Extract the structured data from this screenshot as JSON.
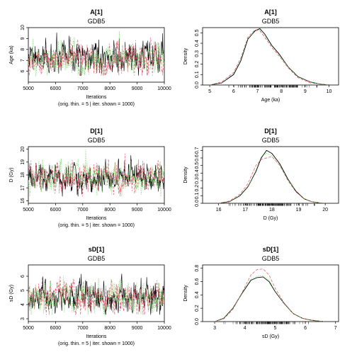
{
  "chart_data": [
    {
      "type": "line",
      "title": "A[1]",
      "subtitle": "GDB5",
      "xlabel": "Iterations",
      "xnote": "(orig. thin. = 5 | iter. shown = 1000)",
      "ylabel": "Age (ka)",
      "xlim": [
        5000,
        10000
      ],
      "ylim": [
        5,
        10
      ],
      "xticks": [
        5000,
        6000,
        7000,
        8000,
        9000,
        10000
      ],
      "yticks": [
        6,
        7,
        8,
        9,
        10
      ],
      "center": 7.1,
      "spread": 0.7,
      "series": [
        {
          "color": "#000000"
        },
        {
          "color": "#DF536B"
        },
        {
          "color": "#61D04F"
        }
      ]
    },
    {
      "type": "line",
      "title": "A[1]",
      "subtitle": "GDB5",
      "xlabel": "Age (ka)",
      "ylabel": "Density",
      "xlim": [
        4.7,
        10.4
      ],
      "ylim": [
        0,
        0.55
      ],
      "xticks": [
        5,
        6,
        7,
        8,
        9,
        10
      ],
      "yticks": [
        0.0,
        0.1,
        0.2,
        0.3,
        0.4,
        0.5
      ],
      "series": [
        {
          "color": "#000000",
          "x": [
            5.0,
            5.5,
            6.0,
            6.3,
            6.6,
            6.9,
            7.1,
            7.3,
            7.6,
            7.9,
            8.3,
            8.7,
            9.2,
            9.6,
            10.0
          ],
          "y": [
            0.0,
            0.02,
            0.1,
            0.23,
            0.44,
            0.52,
            0.54,
            0.49,
            0.38,
            0.3,
            0.17,
            0.08,
            0.03,
            0.01,
            0.0
          ]
        },
        {
          "color": "#DF536B",
          "x": [
            5.0,
            5.5,
            6.0,
            6.3,
            6.6,
            6.9,
            7.1,
            7.3,
            7.6,
            7.9,
            8.3,
            8.7,
            9.2,
            9.6,
            10.0
          ],
          "y": [
            0.0,
            0.03,
            0.12,
            0.26,
            0.46,
            0.53,
            0.52,
            0.46,
            0.36,
            0.28,
            0.16,
            0.07,
            0.02,
            0.01,
            0.0
          ]
        },
        {
          "color": "#61D04F",
          "x": [
            5.0,
            5.5,
            6.0,
            6.3,
            6.6,
            6.9,
            7.1,
            7.3,
            7.6,
            7.9,
            8.3,
            8.7,
            9.2,
            9.6,
            10.0
          ],
          "y": [
            0.0,
            0.02,
            0.11,
            0.25,
            0.45,
            0.51,
            0.53,
            0.47,
            0.37,
            0.29,
            0.17,
            0.08,
            0.03,
            0.01,
            0.0
          ]
        }
      ],
      "rug_range": [
        5.8,
        9.5
      ]
    },
    {
      "type": "line",
      "title": "D[1]",
      "subtitle": "GDB5",
      "xlabel": "Iterations",
      "xnote": "(orig. thin. = 5 | iter. shown = 1000)",
      "ylabel": "D (Gy)",
      "xlim": [
        5000,
        10000
      ],
      "ylim": [
        15.8,
        20.2
      ],
      "xticks": [
        5000,
        6000,
        7000,
        8000,
        9000,
        10000
      ],
      "yticks": [
        16,
        17,
        18,
        19,
        20
      ],
      "center": 17.8,
      "spread": 0.55,
      "series": [
        {
          "color": "#000000"
        },
        {
          "color": "#DF536B"
        },
        {
          "color": "#61D04F"
        }
      ]
    },
    {
      "type": "line",
      "title": "D[1]",
      "subtitle": "GDB5",
      "xlabel": "D (Gy)",
      "ylabel": "Density",
      "xlim": [
        15.4,
        20.5
      ],
      "ylim": [
        0,
        0.75
      ],
      "xticks": [
        16,
        17,
        18,
        19,
        20
      ],
      "yticks": [
        0.0,
        0.1,
        0.2,
        0.3,
        0.4,
        0.5,
        0.6,
        0.7
      ],
      "series": [
        {
          "color": "#000000",
          "x": [
            16.0,
            16.4,
            16.8,
            17.1,
            17.4,
            17.6,
            17.8,
            18.0,
            18.3,
            18.6,
            18.9,
            19.2,
            19.5,
            19.9
          ],
          "y": [
            0.0,
            0.02,
            0.1,
            0.22,
            0.42,
            0.6,
            0.7,
            0.66,
            0.52,
            0.32,
            0.16,
            0.06,
            0.02,
            0.0
          ]
        },
        {
          "color": "#DF536B",
          "x": [
            16.0,
            16.4,
            16.8,
            17.1,
            17.4,
            17.6,
            17.8,
            18.0,
            18.3,
            18.6,
            18.9,
            19.2,
            19.5,
            19.9
          ],
          "y": [
            0.0,
            0.03,
            0.12,
            0.26,
            0.5,
            0.58,
            0.6,
            0.62,
            0.5,
            0.3,
            0.15,
            0.06,
            0.02,
            0.0
          ]
        },
        {
          "color": "#61D04F",
          "x": [
            16.0,
            16.4,
            16.8,
            17.1,
            17.4,
            17.6,
            17.8,
            18.0,
            18.3,
            18.6,
            18.9,
            19.2,
            19.5,
            19.9
          ],
          "y": [
            0.0,
            0.02,
            0.09,
            0.21,
            0.44,
            0.62,
            0.66,
            0.63,
            0.49,
            0.31,
            0.17,
            0.07,
            0.02,
            0.0
          ]
        }
      ],
      "rug_range": [
        16.4,
        19.6
      ]
    },
    {
      "type": "line",
      "title": "sD[1]",
      "subtitle": "GDB5",
      "xlabel": "Iterations",
      "xnote": "(orig. thin. = 5 | iter. shown = 1000)",
      "ylabel": "sD (Gy)",
      "xlim": [
        5000,
        10000
      ],
      "ylim": [
        2.8,
        6.8
      ],
      "xticks": [
        5000,
        6000,
        7000,
        8000,
        9000,
        10000
      ],
      "yticks": [
        3,
        4,
        5,
        6
      ],
      "center": 4.5,
      "spread": 0.55,
      "series": [
        {
          "color": "#000000"
        },
        {
          "color": "#DF536B"
        },
        {
          "color": "#61D04F"
        }
      ]
    },
    {
      "type": "line",
      "title": "sD[1]",
      "subtitle": "GDB5",
      "xlabel": "sD (Gy)",
      "ylabel": "Density",
      "xlim": [
        2.6,
        7.1
      ],
      "ylim": [
        0,
        0.85
      ],
      "xticks": [
        3,
        4,
        5,
        6,
        7
      ],
      "yticks": [
        0.0,
        0.2,
        0.4,
        0.6,
        0.8
      ],
      "series": [
        {
          "color": "#000000",
          "x": [
            3.0,
            3.3,
            3.6,
            3.9,
            4.2,
            4.4,
            4.6,
            4.8,
            5.0,
            5.3,
            5.6,
            5.9,
            6.2,
            6.6
          ],
          "y": [
            0.0,
            0.05,
            0.2,
            0.42,
            0.62,
            0.66,
            0.67,
            0.6,
            0.45,
            0.27,
            0.12,
            0.05,
            0.02,
            0.0
          ]
        },
        {
          "color": "#DF536B",
          "x": [
            3.0,
            3.3,
            3.6,
            3.9,
            4.2,
            4.4,
            4.6,
            4.8,
            5.0,
            5.3,
            5.6,
            5.9,
            6.2,
            6.6
          ],
          "y": [
            0.0,
            0.04,
            0.18,
            0.43,
            0.7,
            0.78,
            0.79,
            0.7,
            0.5,
            0.28,
            0.12,
            0.05,
            0.02,
            0.0
          ]
        },
        {
          "color": "#61D04F",
          "x": [
            3.0,
            3.3,
            3.6,
            3.9,
            4.2,
            4.4,
            4.6,
            4.8,
            5.0,
            5.3,
            5.6,
            5.9,
            6.2,
            6.6
          ],
          "y": [
            0.0,
            0.05,
            0.2,
            0.43,
            0.64,
            0.68,
            0.69,
            0.62,
            0.46,
            0.27,
            0.12,
            0.05,
            0.02,
            0.0
          ]
        }
      ],
      "rug_range": [
        3.3,
        6.1
      ]
    }
  ]
}
